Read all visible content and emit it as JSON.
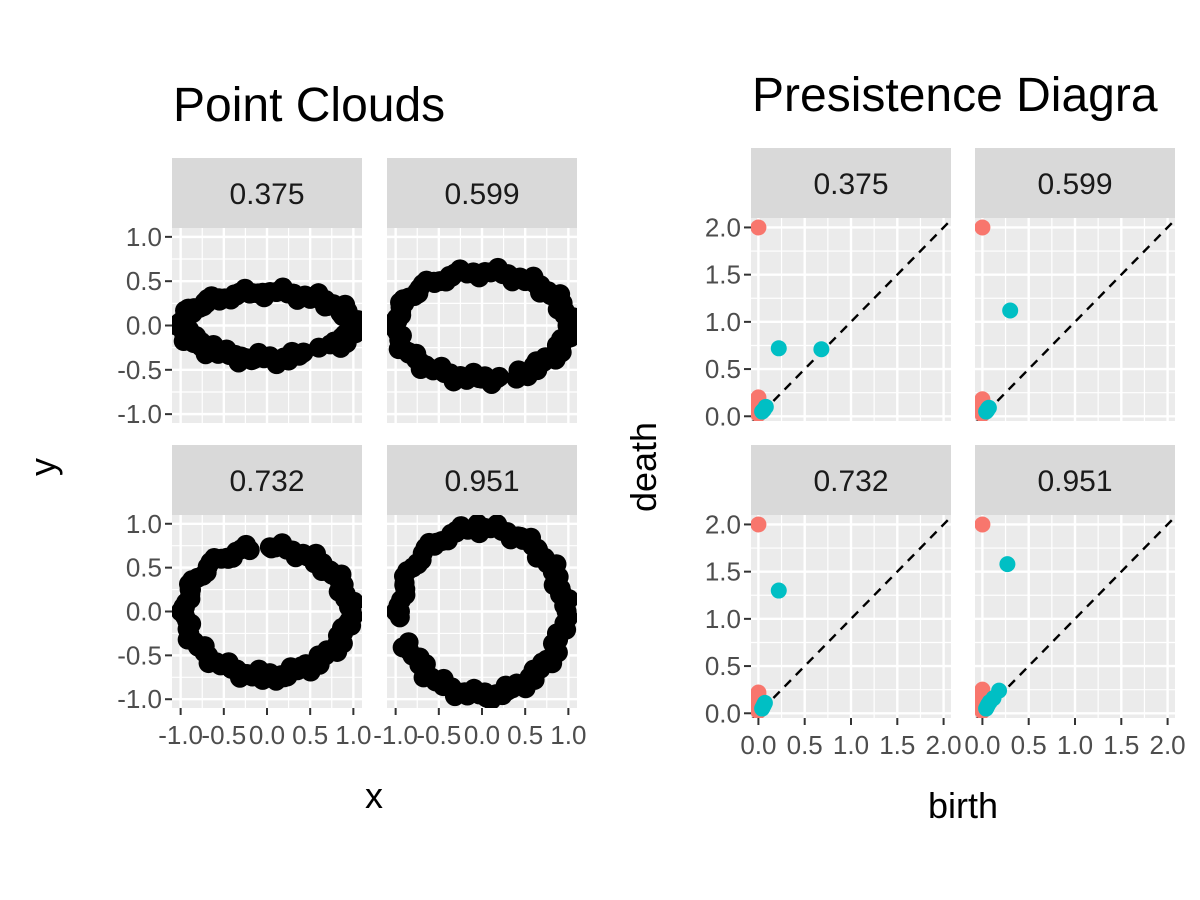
{
  "chart_data": [
    {
      "type": "scatter",
      "title": "Point Clouds",
      "xlabel": "x",
      "ylabel": "y",
      "xlim": [
        -1.1,
        1.1
      ],
      "ylim": [
        -1.1,
        1.1
      ],
      "x_ticks": [
        -1.0,
        -0.5,
        0.0,
        0.5,
        1.0
      ],
      "x_tick_labels": [
        "-1.0",
        "-0.5",
        "0.0",
        "0.5",
        "1.0"
      ],
      "y_ticks": [
        -1.0,
        -0.5,
        0.0,
        0.5,
        1.0
      ],
      "y_tick_labels": [
        "-1.0",
        "-0.5",
        "0.0",
        "0.5",
        "1.0"
      ],
      "grid": true,
      "point_color": "#000000",
      "facets": [
        {
          "label": "0.375",
          "rx": 1.0,
          "ry": 0.375,
          "gaps": [
            [
              5.2,
              5.55
            ]
          ],
          "points": [
            [
              -0.95,
              0.05
            ],
            [
              -0.9,
              -0.05
            ],
            [
              -0.86,
              0.14
            ],
            [
              -0.82,
              -0.12
            ],
            [
              -0.78,
              0.2
            ],
            [
              -0.7,
              0.25
            ],
            [
              -0.62,
              -0.22
            ],
            [
              -0.55,
              0.28
            ],
            [
              -0.45,
              -0.3
            ],
            [
              -0.35,
              0.34
            ],
            [
              -0.3,
              -0.35
            ],
            [
              -0.2,
              0.36
            ],
            [
              -0.15,
              -0.38
            ],
            [
              -0.05,
              0.37
            ],
            [
              0.05,
              -0.37
            ],
            [
              0.12,
              0.38
            ],
            [
              0.2,
              -0.36
            ],
            [
              0.3,
              0.36
            ],
            [
              0.4,
              -0.32
            ],
            [
              0.5,
              0.3
            ],
            [
              0.6,
              -0.25
            ],
            [
              0.7,
              0.22
            ],
            [
              0.78,
              -0.18
            ],
            [
              0.85,
              0.14
            ],
            [
              0.9,
              -0.1
            ],
            [
              0.95,
              0.05
            ],
            [
              0.98,
              -0.02
            ]
          ]
        },
        {
          "label": "0.599",
          "rx": 1.0,
          "ry": 0.6,
          "gaps": [
            [
              4.9,
              5.15
            ]
          ],
          "points": [
            [
              -0.98,
              0.05
            ],
            [
              -0.95,
              -0.15
            ],
            [
              -0.9,
              0.25
            ],
            [
              -0.85,
              -0.3
            ],
            [
              -0.75,
              0.38
            ],
            [
              -0.65,
              -0.45
            ],
            [
              -0.55,
              0.48
            ],
            [
              -0.45,
              -0.52
            ],
            [
              -0.35,
              0.55
            ],
            [
              -0.25,
              -0.57
            ],
            [
              -0.1,
              0.6
            ],
            [
              0.0,
              -0.6
            ],
            [
              0.1,
              0.6
            ],
            [
              0.2,
              -0.58
            ],
            [
              0.3,
              0.58
            ],
            [
              0.4,
              -0.6
            ],
            [
              0.5,
              0.5
            ],
            [
              0.6,
              -0.45
            ],
            [
              0.7,
              0.42
            ],
            [
              0.8,
              -0.35
            ],
            [
              0.88,
              0.28
            ],
            [
              0.93,
              -0.2
            ],
            [
              0.97,
              0.12
            ],
            [
              0.99,
              0.0
            ]
          ]
        },
        {
          "label": "0.732",
          "rx": 0.95,
          "ry": 0.73,
          "gaps": [
            [
              1.55,
              1.75
            ]
          ],
          "points": [
            [
              -0.95,
              0.05
            ],
            [
              -0.92,
              -0.2
            ],
            [
              -0.88,
              0.25
            ],
            [
              -0.8,
              -0.4
            ],
            [
              -0.7,
              0.45
            ],
            [
              -0.55,
              -0.6
            ],
            [
              -0.45,
              0.6
            ],
            [
              -0.3,
              -0.7
            ],
            [
              -0.2,
              0.7
            ],
            [
              -0.05,
              -0.78
            ],
            [
              0.05,
              0.72
            ],
            [
              0.2,
              -0.75
            ],
            [
              0.3,
              0.68
            ],
            [
              0.45,
              -0.6
            ],
            [
              0.55,
              0.55
            ],
            [
              0.65,
              -0.5
            ],
            [
              0.75,
              0.45
            ],
            [
              0.82,
              -0.35
            ],
            [
              0.88,
              0.25
            ],
            [
              0.92,
              -0.15
            ],
            [
              0.95,
              0.05
            ]
          ]
        },
        {
          "label": "0.951",
          "rx": 0.95,
          "ry": 0.95,
          "gaps": [
            [
              3.25,
              3.55
            ]
          ],
          "points": [
            [
              -0.95,
              0.0
            ],
            [
              -0.9,
              0.3
            ],
            [
              -0.85,
              -0.35
            ],
            [
              -0.75,
              0.55
            ],
            [
              -0.65,
              -0.6
            ],
            [
              -0.55,
              0.75
            ],
            [
              -0.45,
              -0.85
            ],
            [
              -0.3,
              0.9
            ],
            [
              -0.2,
              -0.92
            ],
            [
              -0.05,
              1.0
            ],
            [
              0.05,
              -0.98
            ],
            [
              0.2,
              0.95
            ],
            [
              0.3,
              -0.9
            ],
            [
              0.45,
              0.85
            ],
            [
              0.55,
              -0.75
            ],
            [
              0.65,
              0.7
            ],
            [
              0.75,
              -0.55
            ],
            [
              0.82,
              0.45
            ],
            [
              0.88,
              -0.3
            ],
            [
              0.93,
              0.2
            ],
            [
              0.97,
              0.08
            ]
          ]
        }
      ]
    },
    {
      "type": "scatter",
      "title": "Presistence Diagra",
      "xlabel": "birth",
      "ylabel": "death",
      "xlim": [
        -0.08,
        2.08
      ],
      "ylim": [
        -0.05,
        2.1
      ],
      "x_ticks": [
        0.0,
        0.5,
        1.0,
        1.5,
        2.0
      ],
      "x_tick_labels": [
        "0.0",
        "0.5",
        "1.0",
        "1.5",
        "2.0"
      ],
      "y_ticks": [
        0.0,
        0.5,
        1.0,
        1.5,
        2.0
      ],
      "y_tick_labels": [
        "0.0",
        "0.5",
        "1.0",
        "1.5",
        "2.0"
      ],
      "grid": true,
      "reference_line": "y = x (dashed)",
      "colors": {
        "dim0": "#F8766D",
        "dim1": "#00BFC4"
      },
      "facets": [
        {
          "label": "0.375",
          "dim0": [
            [
              0,
              2.0
            ],
            [
              0,
              0.2
            ],
            [
              0,
              0.17
            ],
            [
              0,
              0.14
            ],
            [
              0,
              0.12
            ],
            [
              0,
              0.1
            ],
            [
              0,
              0.08
            ],
            [
              0,
              0.06
            ],
            [
              0,
              0.04
            ],
            [
              0,
              0.02
            ]
          ],
          "dim1": [
            [
              0.22,
              0.72
            ],
            [
              0.68,
              0.71
            ],
            [
              0.08,
              0.1
            ],
            [
              0.06,
              0.07
            ],
            [
              0.05,
              0.06
            ],
            [
              0.04,
              0.05
            ]
          ]
        },
        {
          "label": "0.599",
          "dim0": [
            [
              0,
              2.0
            ],
            [
              0,
              0.18
            ],
            [
              0,
              0.15
            ],
            [
              0,
              0.12
            ],
            [
              0,
              0.1
            ],
            [
              0,
              0.08
            ],
            [
              0,
              0.06
            ],
            [
              0,
              0.04
            ],
            [
              0,
              0.02
            ]
          ],
          "dim1": [
            [
              0.3,
              1.12
            ],
            [
              0.07,
              0.09
            ],
            [
              0.06,
              0.08
            ],
            [
              0.05,
              0.06
            ],
            [
              0.04,
              0.05
            ]
          ]
        },
        {
          "label": "0.732",
          "dim0": [
            [
              0,
              2.0
            ],
            [
              0,
              0.22
            ],
            [
              0,
              0.19
            ],
            [
              0,
              0.16
            ],
            [
              0,
              0.13
            ],
            [
              0,
              0.1
            ],
            [
              0,
              0.08
            ],
            [
              0,
              0.06
            ],
            [
              0,
              0.04
            ],
            [
              0,
              0.02
            ]
          ],
          "dim1": [
            [
              0.22,
              1.3
            ],
            [
              0.07,
              0.11
            ],
            [
              0.06,
              0.09
            ],
            [
              0.05,
              0.07
            ],
            [
              0.04,
              0.05
            ]
          ]
        },
        {
          "label": "0.951",
          "dim0": [
            [
              0,
              2.0
            ],
            [
              0,
              0.25
            ],
            [
              0,
              0.22
            ],
            [
              0,
              0.18
            ],
            [
              0,
              0.15
            ],
            [
              0,
              0.12
            ],
            [
              0,
              0.1
            ],
            [
              0,
              0.08
            ],
            [
              0,
              0.05
            ],
            [
              0,
              0.02
            ]
          ],
          "dim1": [
            [
              0.27,
              1.58
            ],
            [
              0.18,
              0.24
            ],
            [
              0.12,
              0.16
            ],
            [
              0.08,
              0.12
            ],
            [
              0.06,
              0.09
            ],
            [
              0.05,
              0.07
            ],
            [
              0.04,
              0.05
            ]
          ]
        }
      ]
    }
  ]
}
